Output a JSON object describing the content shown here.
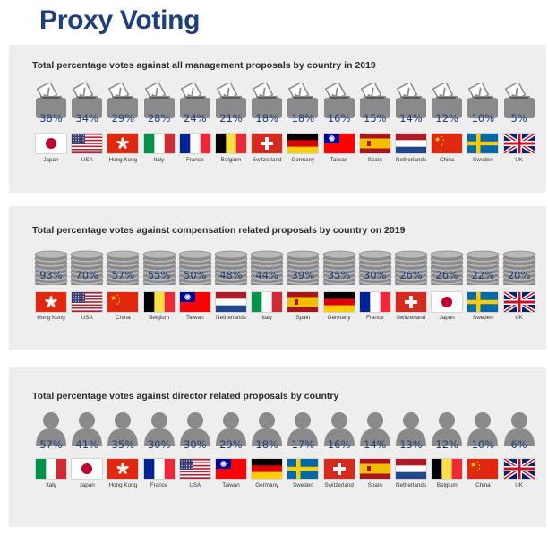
{
  "title": "Proxy Voting",
  "colors": {
    "accent": "#1f3f7a",
    "panel": "#eeeeee",
    "icon": "#8a8a8a",
    "icon_light": "#e8e8e8"
  },
  "chart_data": [
    {
      "type": "bar",
      "title": "Total percentage votes against all management proposals by country in 2019",
      "icon": "ballot-box-icon",
      "unit": "%",
      "categories": [
        "Japan",
        "USA",
        "Hong Kong",
        "Italy",
        "France",
        "Belgium",
        "Switzerland",
        "Germany",
        "Taiwan",
        "Spain",
        "Netherlands",
        "China",
        "Sweden",
        "UK"
      ],
      "values": [
        38,
        34,
        29,
        28,
        24,
        21,
        18,
        18,
        16,
        15,
        14,
        12,
        10,
        5
      ],
      "labels": [
        "38%",
        "34%",
        "29%",
        "28%",
        "24%",
        "21%",
        "18%",
        "18%",
        "16%",
        "15%",
        "14%",
        "12%",
        "10%",
        "5%"
      ]
    },
    {
      "type": "bar",
      "title": "Total percentage votes against compensation related proposals by country on 2019",
      "icon": "coin-stack-icon",
      "unit": "%",
      "categories": [
        "Hong Kong",
        "USA",
        "China",
        "Belgium",
        "Taiwan",
        "Netherlands",
        "Italy",
        "Spain",
        "Germany",
        "France",
        "Switzerland",
        "Japan",
        "Sweden",
        "UK"
      ],
      "values": [
        93,
        70,
        57,
        55,
        50,
        48,
        44,
        39,
        35,
        30,
        26,
        26,
        22,
        20
      ],
      "labels": [
        "93%",
        "70%",
        "57%",
        "55%",
        "50%",
        "48%",
        "44%",
        "39%",
        "35%",
        "30%",
        "26%",
        "26%",
        "22%",
        "20%"
      ]
    },
    {
      "type": "bar",
      "title": "Total percentage votes against director related proposals by country",
      "icon": "person-icon",
      "unit": "%",
      "categories": [
        "Italy",
        "Japan",
        "Hong Kong",
        "France",
        "USA",
        "Taiwan",
        "Germany",
        "Sweden",
        "Switzerland",
        "Spain",
        "Netherlands",
        "Belgium",
        "China",
        "UK"
      ],
      "values": [
        57,
        41,
        35,
        30,
        30,
        29,
        18,
        17,
        16,
        14,
        13,
        12,
        10,
        6
      ],
      "labels": [
        "57%",
        "41%",
        "35%",
        "30%",
        "30%",
        "29%",
        "18%",
        "17%",
        "16%",
        "14%",
        "13%",
        "12%",
        "10%",
        "6%"
      ]
    }
  ]
}
